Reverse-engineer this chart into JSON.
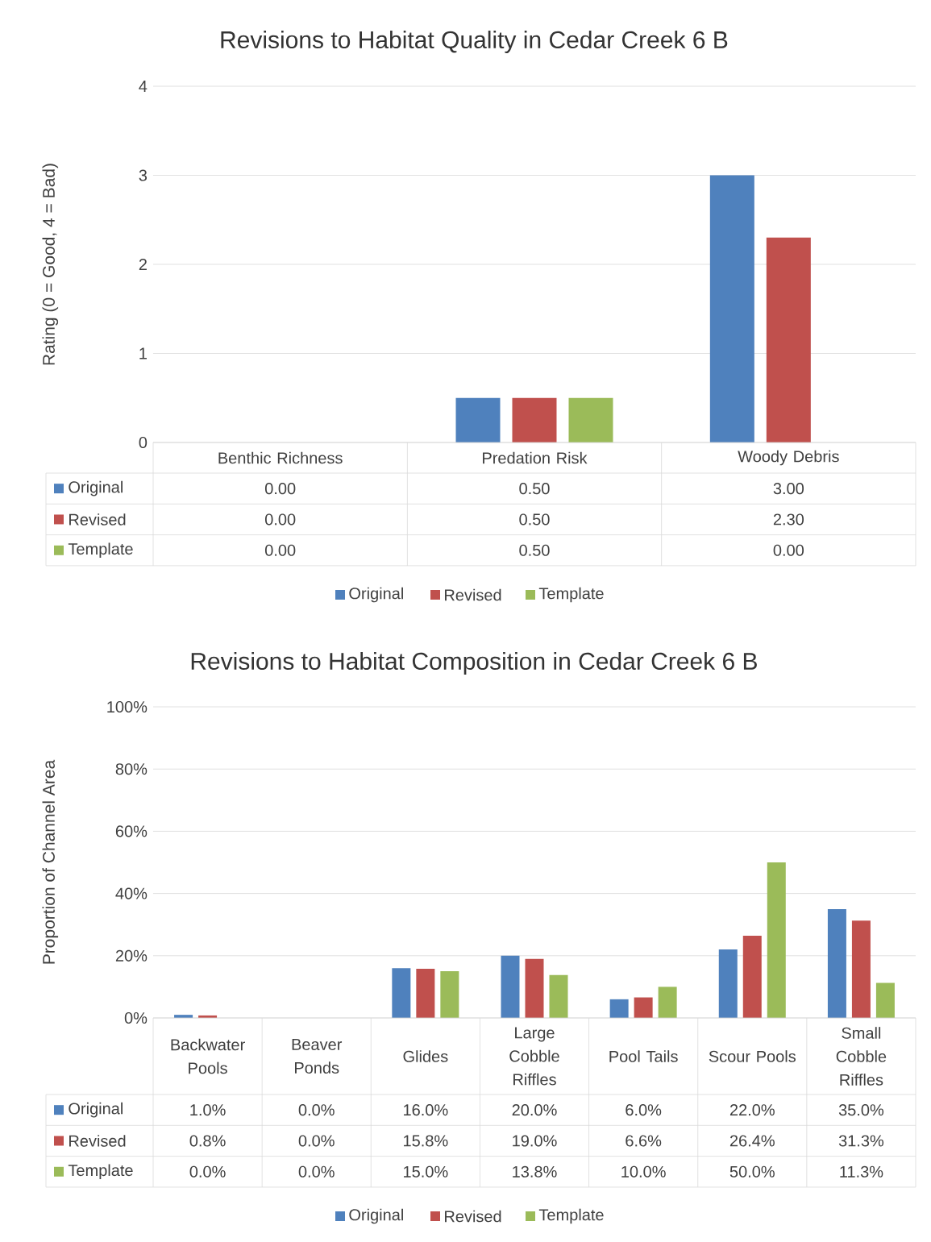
{
  "chart_data": [
    {
      "type": "bar",
      "title": "Revisions to Habitat Quality in Cedar Creek 6 B",
      "ylabel": "Rating (0 = Good, 4 = Bad)",
      "categories": [
        "Benthic Richness",
        "Predation Risk",
        "Woody Debris"
      ],
      "series": [
        {
          "name": "Original",
          "color": "#4f81bd",
          "values": [
            0,
            0.5,
            3.0
          ],
          "value_labels": [
            "0.00",
            "0.50",
            "3.00"
          ]
        },
        {
          "name": "Revised",
          "color": "#c0504d",
          "values": [
            0,
            0.5,
            2.3
          ],
          "value_labels": [
            "0.00",
            "0.50",
            "2.30"
          ]
        },
        {
          "name": "Template",
          "color": "#9bbb59",
          "values": [
            0,
            0.5,
            0
          ],
          "value_labels": [
            "0.00",
            "0.50",
            "0.00"
          ]
        }
      ],
      "ylim": [
        0,
        4
      ],
      "yticks": [
        0,
        1,
        2,
        3,
        4
      ],
      "grid": "y",
      "legend": "bottom"
    },
    {
      "type": "bar",
      "title": "Revisions to Habitat Composition in Cedar Creek 6 B",
      "ylabel": "Proportion of Channel Area",
      "categories": [
        "Backwater Pools",
        "Beaver Ponds",
        "Glides",
        "Large Cobble Riffles",
        "Pool Tails",
        "Scour Pools",
        "Small Cobble Riffles"
      ],
      "series": [
        {
          "name": "Original",
          "color": "#4f81bd",
          "values": [
            1.0,
            0.0,
            16.0,
            20.0,
            6.0,
            22.0,
            35.0
          ],
          "value_labels": [
            "1.0%",
            "0.0%",
            "16.0%",
            "20.0%",
            "6.0%",
            "22.0%",
            "35.0%"
          ]
        },
        {
          "name": "Revised",
          "color": "#c0504d",
          "values": [
            0.8,
            0.0,
            15.8,
            19.0,
            6.6,
            26.4,
            31.3
          ],
          "value_labels": [
            "0.8%",
            "0.0%",
            "15.8%",
            "19.0%",
            "6.6%",
            "26.4%",
            "31.3%"
          ]
        },
        {
          "name": "Template",
          "color": "#9bbb59",
          "values": [
            0.0,
            0.0,
            15.0,
            13.8,
            10.0,
            50.0,
            11.3
          ],
          "value_labels": [
            "0.0%",
            "0.0%",
            "15.0%",
            "13.8%",
            "10.0%",
            "50.0%",
            "11.3%"
          ]
        }
      ],
      "ylim": [
        0,
        100
      ],
      "yticks": [
        {
          "value": 0,
          "label": "0%"
        },
        {
          "value": 20,
          "label": "20%"
        },
        {
          "value": 40,
          "label": "40%"
        },
        {
          "value": 60,
          "label": "60%"
        },
        {
          "value": 80,
          "label": "80%"
        },
        {
          "value": 100,
          "label": "100%"
        }
      ],
      "grid": "y",
      "legend": "bottom"
    }
  ]
}
